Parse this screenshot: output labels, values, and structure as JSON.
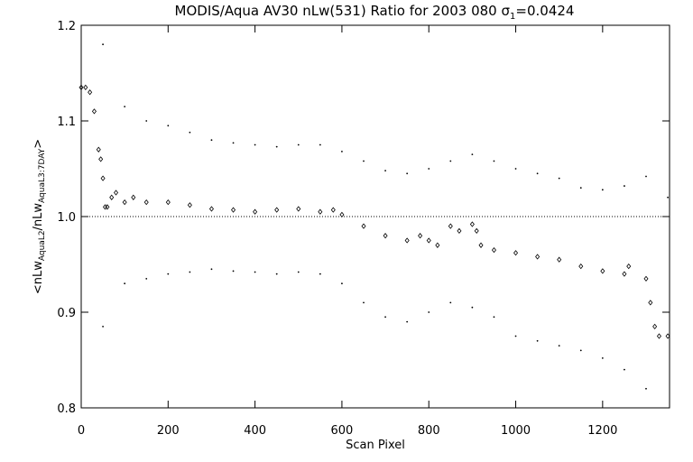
{
  "chart_data": {
    "type": "scatter",
    "title": "MODIS/Aqua AV30 nLw(531) Ratio for 2003 080",
    "title_sigma": "σ",
    "title_sigma_sub": "1",
    "title_sigma_value": "=0.0424",
    "xlabel": "Scan Pixel",
    "ylabel": {
      "open": "<nLw",
      "sub1": "AquaL2",
      "mid": "/nLw",
      "sub2": "AquaL3:7DAY",
      "close": ">"
    },
    "xlim": [
      0,
      1354
    ],
    "ylim": [
      0.8,
      1.2
    ],
    "x_ticks": [
      0,
      200,
      400,
      600,
      800,
      1000,
      1200
    ],
    "x_tick_labels": [
      "0",
      "200",
      "400",
      "600",
      "800",
      "1000",
      "1200"
    ],
    "y_ticks": [
      0.8,
      0.9,
      1.0,
      1.1,
      1.2
    ],
    "y_tick_labels": [
      "0.8",
      "0.9",
      "1.0",
      "1.1",
      "1.2"
    ],
    "reference_line": 1.0,
    "grid": false,
    "series": [
      {
        "role": "mean_ratio",
        "marker": "diamond",
        "x": [
          0,
          10,
          20,
          30,
          40,
          45,
          50,
          55,
          60,
          70,
          80,
          100,
          120,
          150,
          200,
          250,
          300,
          350,
          400,
          450,
          500,
          550,
          580,
          600,
          650,
          700,
          750,
          780,
          800,
          820,
          850,
          870,
          900,
          910,
          920,
          950,
          1000,
          1050,
          1100,
          1150,
          1200,
          1250,
          1260,
          1300,
          1310,
          1320,
          1330,
          1350
        ],
        "y": [
          1.135,
          1.135,
          1.13,
          1.11,
          1.07,
          1.06,
          1.04,
          1.01,
          1.01,
          1.02,
          1.025,
          1.015,
          1.02,
          1.015,
          1.015,
          1.012,
          1.008,
          1.007,
          1.005,
          1.007,
          1.008,
          1.005,
          1.007,
          1.002,
          0.99,
          0.98,
          0.975,
          0.98,
          0.975,
          0.97,
          0.99,
          0.985,
          0.992,
          0.985,
          0.97,
          0.965,
          0.962,
          0.958,
          0.955,
          0.948,
          0.943,
          0.94,
          0.948,
          0.935,
          0.91,
          0.885,
          0.875,
          0.875
        ]
      },
      {
        "role": "upper_envelope",
        "marker": "dot",
        "x": [
          50,
          100,
          150,
          200,
          250,
          300,
          350,
          400,
          450,
          500,
          550,
          600,
          650,
          700,
          750,
          800,
          850,
          900,
          950,
          1000,
          1050,
          1100,
          1150,
          1200,
          1250,
          1300,
          1350
        ],
        "y": [
          1.18,
          1.115,
          1.1,
          1.095,
          1.088,
          1.08,
          1.077,
          1.075,
          1.073,
          1.075,
          1.075,
          1.068,
          1.058,
          1.048,
          1.045,
          1.05,
          1.058,
          1.065,
          1.058,
          1.05,
          1.045,
          1.04,
          1.03,
          1.028,
          1.032,
          1.042,
          1.02
        ]
      },
      {
        "role": "lower_envelope",
        "marker": "dot",
        "x": [
          50,
          100,
          150,
          200,
          250,
          300,
          350,
          400,
          450,
          500,
          550,
          600,
          650,
          700,
          750,
          800,
          850,
          900,
          950,
          1000,
          1050,
          1100,
          1150,
          1200,
          1250,
          1300
        ],
        "y": [
          0.885,
          0.93,
          0.935,
          0.94,
          0.942,
          0.945,
          0.943,
          0.942,
          0.94,
          0.942,
          0.94,
          0.93,
          0.91,
          0.895,
          0.89,
          0.9,
          0.91,
          0.905,
          0.895,
          0.875,
          0.87,
          0.865,
          0.86,
          0.852,
          0.84,
          0.82
        ]
      }
    ]
  }
}
